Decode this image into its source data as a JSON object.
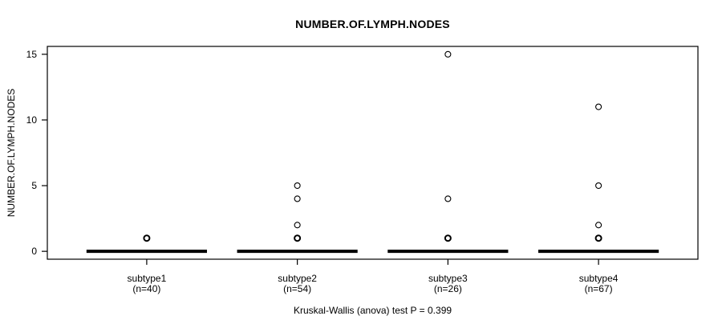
{
  "chart_data": {
    "type": "boxplot",
    "title": "NUMBER.OF.LYMPH.NODES",
    "ylabel": "NUMBER.OF.LYMPH.NODES",
    "xlabel": "",
    "caption": "Kruskal-Wallis (anova) test P = 0.399",
    "ylim": [
      0,
      15
    ],
    "yticks": [
      0,
      5,
      10,
      15
    ],
    "grid": false,
    "legend": null,
    "colors": {
      "foreground": "#000000",
      "background": "#ffffff"
    },
    "groups": [
      {
        "label": "subtype1",
        "sublabel": "(n=40)",
        "median": 0,
        "q1": 0,
        "q3": 0,
        "whisker_low": 0,
        "whisker_high": 0,
        "outliers": [
          {
            "value": 1,
            "bold": true
          }
        ]
      },
      {
        "label": "subtype2",
        "sublabel": "(n=54)",
        "median": 0,
        "q1": 0,
        "q3": 0,
        "whisker_low": 0,
        "whisker_high": 0,
        "outliers": [
          {
            "value": 5,
            "bold": false
          },
          {
            "value": 4,
            "bold": false
          },
          {
            "value": 2,
            "bold": false
          },
          {
            "value": 1,
            "bold": true
          }
        ]
      },
      {
        "label": "subtype3",
        "sublabel": "(n=26)",
        "median": 0,
        "q1": 0,
        "q3": 0,
        "whisker_low": 0,
        "whisker_high": 0,
        "outliers": [
          {
            "value": 15,
            "bold": false
          },
          {
            "value": 4,
            "bold": false
          },
          {
            "value": 1,
            "bold": true
          }
        ]
      },
      {
        "label": "subtype4",
        "sublabel": "(n=67)",
        "median": 0,
        "q1": 0,
        "q3": 0,
        "whisker_low": 0,
        "whisker_high": 0,
        "outliers": [
          {
            "value": 11,
            "bold": false
          },
          {
            "value": 5,
            "bold": false
          },
          {
            "value": 2,
            "bold": false
          },
          {
            "value": 1,
            "bold": true
          }
        ]
      }
    ]
  }
}
